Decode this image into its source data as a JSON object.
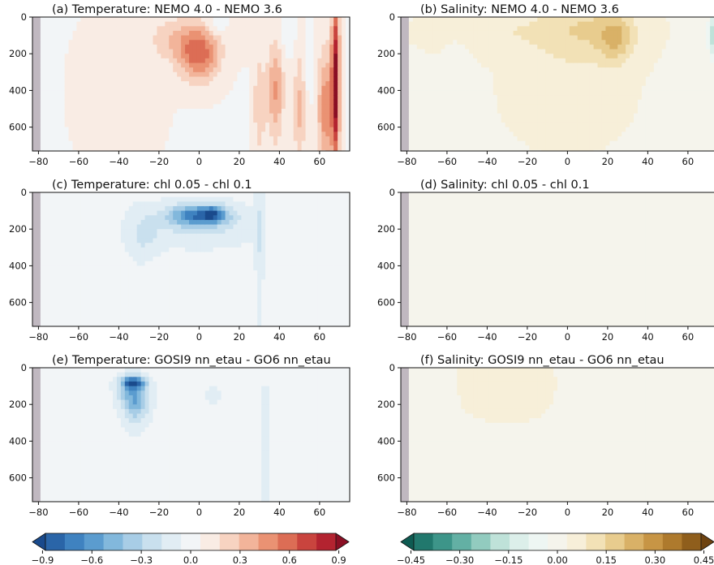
{
  "figure": {
    "panels": [
      {
        "title": "(a) Temperature: NEMO 4.0 - NEMO 3.6",
        "variable": "temperature"
      },
      {
        "title": "(b) Salinity: NEMO 4.0 - NEMO 3.6",
        "variable": "salinity"
      },
      {
        "title": "(c) Temperature: chl 0.05 - chl 0.1",
        "variable": "temperature"
      },
      {
        "title": "(d) Salinity: chl 0.05 - chl 0.1",
        "variable": "salinity"
      },
      {
        "title": "(e) Temperature: GOSI9 nn_etau - GO6 nn_etau",
        "variable": "temperature"
      },
      {
        "title": "(f) Salinity: GOSI9 nn_etau - GO6 nn_etau",
        "variable": "salinity"
      }
    ],
    "x_ticks": [
      "−80",
      "−60",
      "−40",
      "−20",
      "0",
      "20",
      "40",
      "60"
    ],
    "y_ticks": [
      "0",
      "200",
      "400",
      "600"
    ],
    "colorbars": [
      {
        "name": "temperature",
        "ticks": [
          "−0.9",
          "−0.6",
          "−0.3",
          "0.0",
          "0.3",
          "0.6",
          "0.9"
        ]
      },
      {
        "name": "salinity",
        "ticks": [
          "−0.45",
          "−0.30",
          "−0.15",
          "0.00",
          "0.15",
          "0.30",
          "0.45"
        ]
      }
    ]
  },
  "chart_data": {
    "type": "heatmap",
    "layout": "3 rows x 2 columns",
    "x_range": [
      -83,
      75
    ],
    "y_range": [
      0,
      730
    ],
    "y_inverted": true,
    "land_color": "#c0b8c0",
    "colormaps": {
      "temperature": {
        "name": "RdBu_r",
        "range": [
          -1.0,
          1.0
        ],
        "colors": [
          "#1a4a8c",
          "#2a65a8",
          "#3f82c0",
          "#5b9ccf",
          "#82b8dc",
          "#a8cde6",
          "#c9e0ee",
          "#e1edf4",
          "#f2f5f7",
          "#f9ece4",
          "#f7d3c1",
          "#f2b49a",
          "#ea9273",
          "#dc6d55",
          "#c9443e",
          "#b32330",
          "#8a0f24"
        ]
      },
      "salinity": {
        "name": "BrBG_r",
        "range": [
          -0.5,
          0.5
        ],
        "colors": [
          "#0e5b52",
          "#21786d",
          "#3d9589",
          "#63b0a4",
          "#92cbbf",
          "#bfe2d9",
          "#dcefea",
          "#eef6f3",
          "#f5f4ec",
          "#f7efd9",
          "#f2e1b6",
          "#e8cc8e",
          "#d9b167",
          "#c79545",
          "#ae7a2d",
          "#8f5e1c",
          "#6e4310"
        ]
      },
      "extend": "both"
    },
    "panels": [
      {
        "id": "a",
        "colormap": "temperature",
        "background": 0.05,
        "features": [
          {
            "lat": 0,
            "depth": 200,
            "lat_width": 10,
            "depth_width": 150,
            "value": 0.55
          },
          {
            "lat": -13,
            "depth": 120,
            "lat_width": 12,
            "depth_width": 120,
            "value": 0.2
          },
          {
            "lat": 22,
            "depth": 60,
            "lat_width": 8,
            "depth_width": 120,
            "value": 0.12
          },
          {
            "lat": 38,
            "depth": 400,
            "lat_width": 4,
            "depth_width": 280,
            "value": 0.38
          },
          {
            "lat": 30,
            "depth": 480,
            "lat_width": 3,
            "depth_width": 280,
            "value": 0.22
          },
          {
            "lat": 68,
            "depth": 350,
            "lat_width": 2,
            "depth_width": 450,
            "value": 0.9
          },
          {
            "lat": 63,
            "depth": 500,
            "lat_width": 4,
            "depth_width": 320,
            "value": 0.45
          },
          {
            "lat": 50,
            "depth": 500,
            "lat_width": 3,
            "depth_width": 300,
            "value": 0.28
          },
          {
            "lat": 10,
            "depth": 40,
            "lat_width": 6,
            "depth_width": 60,
            "value": -0.12
          },
          {
            "lat": 44,
            "depth": 80,
            "lat_width": 4,
            "depth_width": 100,
            "value": -0.12
          },
          {
            "lat": 55,
            "depth": 300,
            "lat_width": 2,
            "depth_width": 150,
            "value": -0.08
          },
          {
            "lat": -40,
            "depth": 400,
            "lat_width": 20,
            "depth_width": 400,
            "value": 0.06
          }
        ]
      },
      {
        "id": "b",
        "colormap": "salinity",
        "background": 0.02,
        "features": [
          {
            "lat": 10,
            "depth": 60,
            "lat_width": 25,
            "depth_width": 180,
            "value": 0.12
          },
          {
            "lat": 24,
            "depth": 120,
            "lat_width": 8,
            "depth_width": 120,
            "value": 0.14
          },
          {
            "lat": -40,
            "depth": 80,
            "lat_width": 30,
            "depth_width": 120,
            "value": 0.06
          },
          {
            "lat": 72,
            "depth": 100,
            "lat_width": 2,
            "depth_width": 120,
            "value": -0.2
          },
          {
            "lat": 0,
            "depth": 400,
            "lat_width": 30,
            "depth_width": 300,
            "value": 0.04
          },
          {
            "lat": -55,
            "depth": 250,
            "lat_width": 6,
            "depth_width": 200,
            "value": -0.04
          }
        ]
      },
      {
        "id": "c",
        "colormap": "temperature",
        "background": -0.02,
        "features": [
          {
            "lat": 0,
            "depth": 125,
            "lat_width": 14,
            "depth_width": 55,
            "value": -0.65
          },
          {
            "lat": 7,
            "depth": 115,
            "lat_width": 5,
            "depth_width": 40,
            "value": -0.35
          },
          {
            "lat": 0,
            "depth": 190,
            "lat_width": 26,
            "depth_width": 130,
            "value": -0.2
          },
          {
            "lat": -28,
            "depth": 240,
            "lat_width": 8,
            "depth_width": 140,
            "value": -0.15
          },
          {
            "lat": 30,
            "depth": 300,
            "lat_width": 2,
            "depth_width": 450,
            "value": -0.15
          },
          {
            "lat": 0,
            "depth": 450,
            "lat_width": 25,
            "depth_width": 300,
            "value": 0.05
          }
        ]
      },
      {
        "id": "d",
        "colormap": "salinity",
        "background": 0.015,
        "features": [
          {
            "lat": 0,
            "depth": 300,
            "lat_width": 40,
            "depth_width": 300,
            "value": -0.015
          },
          {
            "lat": -60,
            "depth": 400,
            "lat_width": 4,
            "depth_width": 300,
            "value": -0.03
          },
          {
            "lat": 30,
            "depth": 300,
            "lat_width": 2,
            "depth_width": 400,
            "value": -0.03
          }
        ]
      },
      {
        "id": "e",
        "colormap": "temperature",
        "background": -0.02,
        "features": [
          {
            "lat": -33,
            "depth": 80,
            "lat_width": 6,
            "depth_width": 35,
            "value": -0.7
          },
          {
            "lat": -33,
            "depth": 150,
            "lat_width": 7,
            "depth_width": 90,
            "value": -0.4
          },
          {
            "lat": -31,
            "depth": 230,
            "lat_width": 6,
            "depth_width": 110,
            "value": -0.22
          },
          {
            "lat": 7,
            "depth": 140,
            "lat_width": 3,
            "depth_width": 50,
            "value": -0.18
          },
          {
            "lat": 33,
            "depth": 500,
            "lat_width": 2,
            "depth_width": 400,
            "value": -0.15
          },
          {
            "lat": 10,
            "depth": 40,
            "lat_width": 15,
            "depth_width": 80,
            "value": 0.06
          },
          {
            "lat": -20,
            "depth": 600,
            "lat_width": 10,
            "depth_width": 200,
            "value": 0.06
          }
        ]
      },
      {
        "id": "f",
        "colormap": "salinity",
        "background": 0.025,
        "features": [
          {
            "lat": -30,
            "depth": 100,
            "lat_width": 20,
            "depth_width": 150,
            "value": 0.03
          },
          {
            "lat": 10,
            "depth": 300,
            "lat_width": 12,
            "depth_width": 300,
            "value": -0.02
          },
          {
            "lat": 30,
            "depth": 350,
            "lat_width": 3,
            "depth_width": 400,
            "value": -0.03
          },
          {
            "lat": -60,
            "depth": 400,
            "lat_width": 4,
            "depth_width": 300,
            "value": -0.03
          }
        ]
      }
    ]
  }
}
